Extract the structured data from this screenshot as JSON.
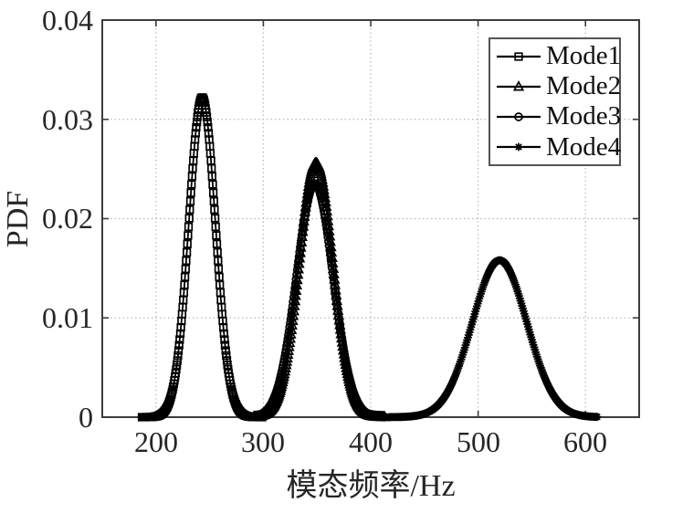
{
  "chart_data": {
    "type": "line",
    "title": "",
    "xlabel": "模态频率/Hz",
    "ylabel": "PDF",
    "xlim": [
      150,
      650
    ],
    "ylim": [
      0,
      0.04
    ],
    "xtick_values": [
      200,
      300,
      400,
      500,
      600
    ],
    "xtick_labels": [
      "200",
      "300",
      "400",
      "500",
      "600"
    ],
    "ytick_values": [
      0,
      0.01,
      0.02,
      0.03,
      0.04
    ],
    "ytick_labels": [
      "0",
      "0.01",
      "0.02",
      "0.03",
      "0.04"
    ],
    "grid": {
      "shown": true,
      "style": "dotted",
      "color": "#b8b8b8"
    },
    "axes": {
      "box": true,
      "color": "#3d3d3d",
      "tick_direction": "in",
      "tick_label_color": "#262626"
    },
    "line_color": "#000000",
    "legend": {
      "position": "top-right",
      "entries": [
        "Mode1",
        "Mode2",
        "Mode3",
        "Mode4"
      ]
    },
    "series": [
      {
        "name": "Mode1",
        "marker": "square",
        "curve": "gaussian",
        "mean": 243,
        "sigma": 12.4,
        "peak_pdf": 0.0322,
        "x_range": [
          187,
          299
        ],
        "sample_step_hz": 0.55
      },
      {
        "name": "Mode2",
        "marker": "triangle",
        "curve": "gaussian",
        "mean": 349,
        "sigma": 15.6,
        "peak_pdf": 0.0256,
        "x_range": [
          291,
          413
        ],
        "sample_step_hz": 0.55
      },
      {
        "name": "Mode3",
        "marker": "circle",
        "curve": "gaussian",
        "mean": 348,
        "sigma": 17.0,
        "peak_pdf": 0.0235,
        "x_range": [
          291,
          413
        ],
        "sample_step_hz": 0.55
      },
      {
        "name": "Mode4",
        "marker": "asterisk",
        "curve": "gaussian",
        "mean": 520,
        "sigma": 25.3,
        "peak_pdf": 0.0158,
        "x_range": [
          417,
          611
        ],
        "sample_step_hz": 0.7
      }
    ]
  }
}
